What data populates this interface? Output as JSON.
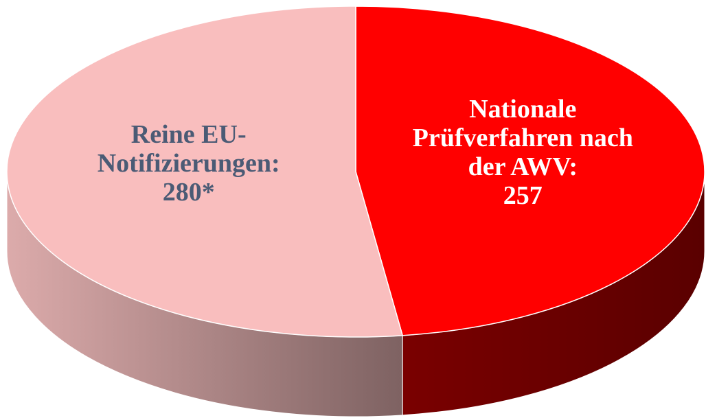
{
  "chart_data": {
    "type": "pie3d",
    "categories": [
      "Nationale Prüfverfahren nach der AWV:",
      "Reine EU-Notifizierungen:"
    ],
    "values": [
      257,
      280
    ],
    "value_labels": [
      "257",
      "280*"
    ],
    "colors": [
      "#ff0000",
      "#f9bebe"
    ],
    "label_colors": [
      "#ffffff",
      "#4b5b75"
    ]
  }
}
